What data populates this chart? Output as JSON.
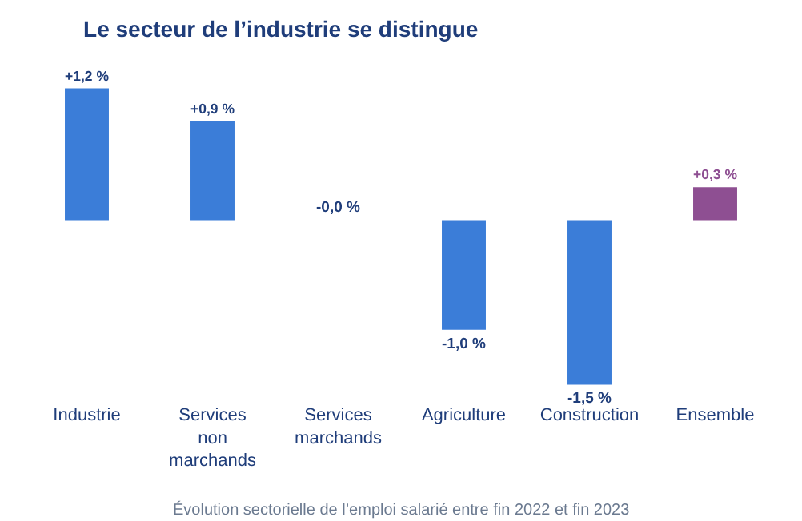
{
  "chart_data": {
    "type": "bar",
    "title": "Le secteur de l’industrie se distingue",
    "categories": [
      "Industrie",
      "Services non marchands",
      "Services marchands",
      "Agriculture",
      "Construction",
      "Ensemble"
    ],
    "values": [
      1.2,
      0.9,
      -0.0,
      -1.0,
      -1.5,
      0.3
    ],
    "colors": [
      "#3b7dd8",
      "#3b7dd8",
      "#3b7dd8",
      "#3b7dd8",
      "#3b7dd8",
      "#8e4f92"
    ],
    "value_labels": [
      "+1,2 %",
      "+0,9 %",
      "-0,0 %",
      "-1,0 %",
      "-1,5 %",
      "+0,3 %"
    ],
    "annotations": [
      "Évolution sectorielle de l’emploi salarié entre fin 2022 et fin 2023"
    ]
  }
}
